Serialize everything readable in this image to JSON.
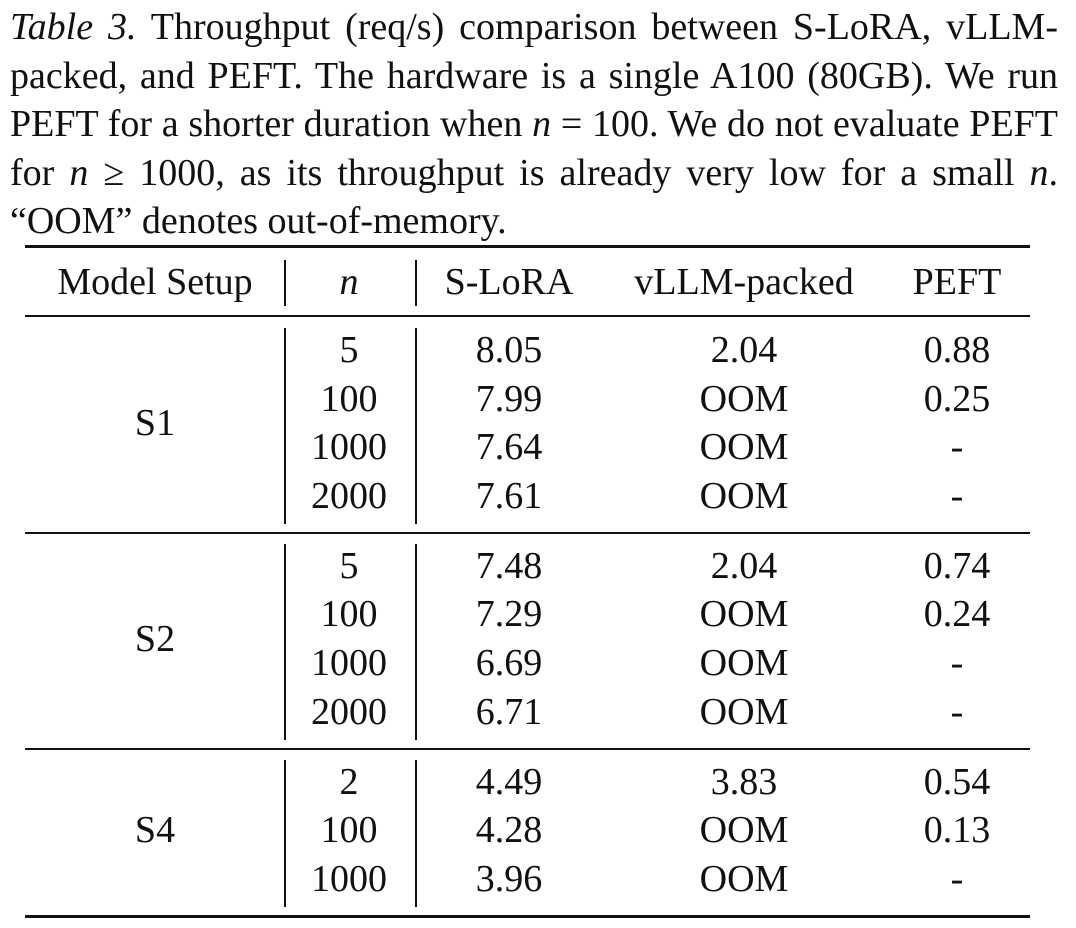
{
  "caption": {
    "label": "Table 3.",
    "segments": [
      "Throughput (req/s) comparison between S-LoRA, vLLM-packed, and PEFT. The hardware is a single A100 (80GB). We run PEFT for a shorter duration when ",
      "n",
      " = 100. We do not evaluate PEFT for ",
      "n",
      " ≥ 1000, as its throughput is already very low for a small ",
      "n",
      ". “OOM” denotes out-of-memory."
    ]
  },
  "table": {
    "header": [
      "Model Setup",
      "n",
      "S-LoRA",
      "vLLM-packed",
      "PEFT"
    ],
    "groups": [
      {
        "setup": "S1",
        "rows": [
          [
            5,
            8.05,
            2.04,
            0.88
          ],
          [
            100,
            7.99,
            "OOM",
            0.25
          ],
          [
            1000,
            7.64,
            "OOM",
            "-"
          ],
          [
            2000,
            7.61,
            "OOM",
            "-"
          ]
        ]
      },
      {
        "setup": "S2",
        "rows": [
          [
            5,
            7.48,
            2.04,
            0.74
          ],
          [
            100,
            7.29,
            "OOM",
            0.24
          ],
          [
            1000,
            6.69,
            "OOM",
            "-"
          ],
          [
            2000,
            6.71,
            "OOM",
            "-"
          ]
        ]
      },
      {
        "setup": "S4",
        "rows": [
          [
            2,
            4.49,
            3.83,
            0.54
          ],
          [
            100,
            4.28,
            "OOM",
            0.13
          ],
          [
            1000,
            3.96,
            "OOM",
            "-"
          ]
        ]
      }
    ]
  }
}
